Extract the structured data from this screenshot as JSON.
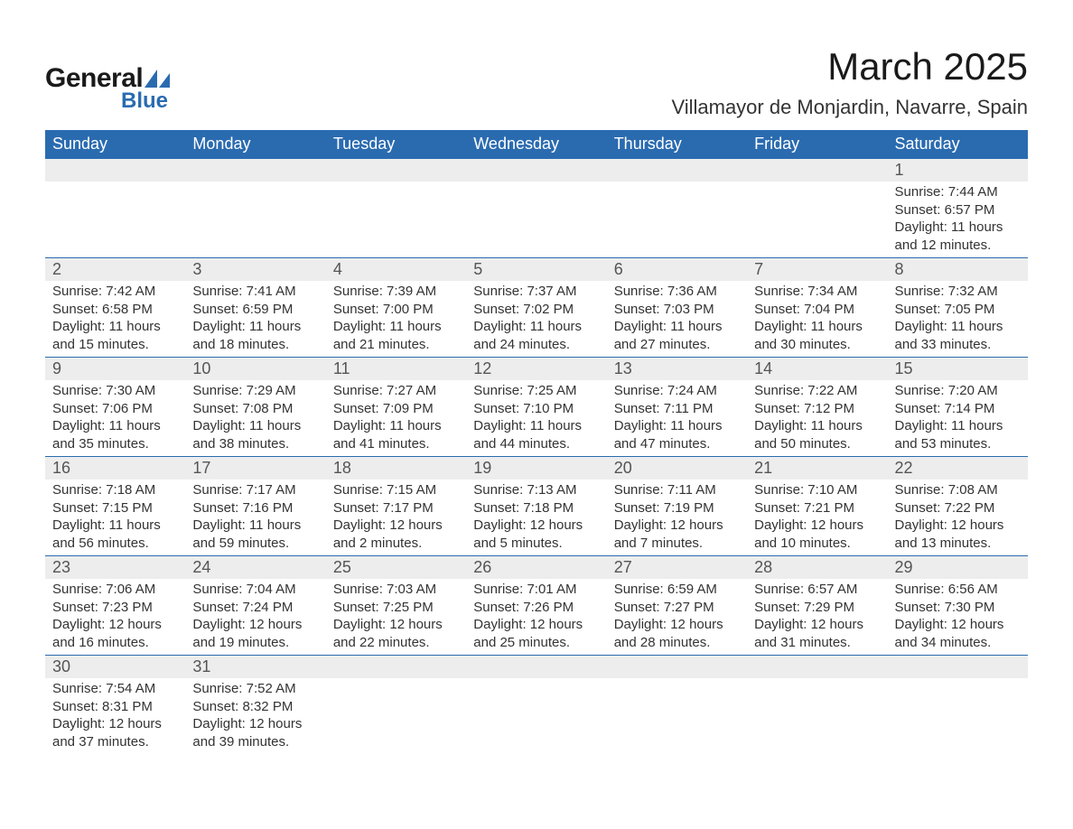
{
  "logo": {
    "text_general": "General",
    "text_blue": "Blue",
    "icon_color": "#2a6bb0"
  },
  "title": "March 2025",
  "location": "Villamayor de Monjardin, Navarre, Spain",
  "colors": {
    "header_bg": "#2a6bb0",
    "header_text": "#ffffff",
    "daynum_bg": "#ededed",
    "border": "#2a6bb0",
    "body_text": "#333333"
  },
  "weekdays": [
    "Sunday",
    "Monday",
    "Tuesday",
    "Wednesday",
    "Thursday",
    "Friday",
    "Saturday"
  ],
  "weeks": [
    [
      null,
      null,
      null,
      null,
      null,
      null,
      {
        "n": "1",
        "sunrise": "Sunrise: 7:44 AM",
        "sunset": "Sunset: 6:57 PM",
        "day1": "Daylight: 11 hours",
        "day2": "and 12 minutes."
      }
    ],
    [
      {
        "n": "2",
        "sunrise": "Sunrise: 7:42 AM",
        "sunset": "Sunset: 6:58 PM",
        "day1": "Daylight: 11 hours",
        "day2": "and 15 minutes."
      },
      {
        "n": "3",
        "sunrise": "Sunrise: 7:41 AM",
        "sunset": "Sunset: 6:59 PM",
        "day1": "Daylight: 11 hours",
        "day2": "and 18 minutes."
      },
      {
        "n": "4",
        "sunrise": "Sunrise: 7:39 AM",
        "sunset": "Sunset: 7:00 PM",
        "day1": "Daylight: 11 hours",
        "day2": "and 21 minutes."
      },
      {
        "n": "5",
        "sunrise": "Sunrise: 7:37 AM",
        "sunset": "Sunset: 7:02 PM",
        "day1": "Daylight: 11 hours",
        "day2": "and 24 minutes."
      },
      {
        "n": "6",
        "sunrise": "Sunrise: 7:36 AM",
        "sunset": "Sunset: 7:03 PM",
        "day1": "Daylight: 11 hours",
        "day2": "and 27 minutes."
      },
      {
        "n": "7",
        "sunrise": "Sunrise: 7:34 AM",
        "sunset": "Sunset: 7:04 PM",
        "day1": "Daylight: 11 hours",
        "day2": "and 30 minutes."
      },
      {
        "n": "8",
        "sunrise": "Sunrise: 7:32 AM",
        "sunset": "Sunset: 7:05 PM",
        "day1": "Daylight: 11 hours",
        "day2": "and 33 minutes."
      }
    ],
    [
      {
        "n": "9",
        "sunrise": "Sunrise: 7:30 AM",
        "sunset": "Sunset: 7:06 PM",
        "day1": "Daylight: 11 hours",
        "day2": "and 35 minutes."
      },
      {
        "n": "10",
        "sunrise": "Sunrise: 7:29 AM",
        "sunset": "Sunset: 7:08 PM",
        "day1": "Daylight: 11 hours",
        "day2": "and 38 minutes."
      },
      {
        "n": "11",
        "sunrise": "Sunrise: 7:27 AM",
        "sunset": "Sunset: 7:09 PM",
        "day1": "Daylight: 11 hours",
        "day2": "and 41 minutes."
      },
      {
        "n": "12",
        "sunrise": "Sunrise: 7:25 AM",
        "sunset": "Sunset: 7:10 PM",
        "day1": "Daylight: 11 hours",
        "day2": "and 44 minutes."
      },
      {
        "n": "13",
        "sunrise": "Sunrise: 7:24 AM",
        "sunset": "Sunset: 7:11 PM",
        "day1": "Daylight: 11 hours",
        "day2": "and 47 minutes."
      },
      {
        "n": "14",
        "sunrise": "Sunrise: 7:22 AM",
        "sunset": "Sunset: 7:12 PM",
        "day1": "Daylight: 11 hours",
        "day2": "and 50 minutes."
      },
      {
        "n": "15",
        "sunrise": "Sunrise: 7:20 AM",
        "sunset": "Sunset: 7:14 PM",
        "day1": "Daylight: 11 hours",
        "day2": "and 53 minutes."
      }
    ],
    [
      {
        "n": "16",
        "sunrise": "Sunrise: 7:18 AM",
        "sunset": "Sunset: 7:15 PM",
        "day1": "Daylight: 11 hours",
        "day2": "and 56 minutes."
      },
      {
        "n": "17",
        "sunrise": "Sunrise: 7:17 AM",
        "sunset": "Sunset: 7:16 PM",
        "day1": "Daylight: 11 hours",
        "day2": "and 59 minutes."
      },
      {
        "n": "18",
        "sunrise": "Sunrise: 7:15 AM",
        "sunset": "Sunset: 7:17 PM",
        "day1": "Daylight: 12 hours",
        "day2": "and 2 minutes."
      },
      {
        "n": "19",
        "sunrise": "Sunrise: 7:13 AM",
        "sunset": "Sunset: 7:18 PM",
        "day1": "Daylight: 12 hours",
        "day2": "and 5 minutes."
      },
      {
        "n": "20",
        "sunrise": "Sunrise: 7:11 AM",
        "sunset": "Sunset: 7:19 PM",
        "day1": "Daylight: 12 hours",
        "day2": "and 7 minutes."
      },
      {
        "n": "21",
        "sunrise": "Sunrise: 7:10 AM",
        "sunset": "Sunset: 7:21 PM",
        "day1": "Daylight: 12 hours",
        "day2": "and 10 minutes."
      },
      {
        "n": "22",
        "sunrise": "Sunrise: 7:08 AM",
        "sunset": "Sunset: 7:22 PM",
        "day1": "Daylight: 12 hours",
        "day2": "and 13 minutes."
      }
    ],
    [
      {
        "n": "23",
        "sunrise": "Sunrise: 7:06 AM",
        "sunset": "Sunset: 7:23 PM",
        "day1": "Daylight: 12 hours",
        "day2": "and 16 minutes."
      },
      {
        "n": "24",
        "sunrise": "Sunrise: 7:04 AM",
        "sunset": "Sunset: 7:24 PM",
        "day1": "Daylight: 12 hours",
        "day2": "and 19 minutes."
      },
      {
        "n": "25",
        "sunrise": "Sunrise: 7:03 AM",
        "sunset": "Sunset: 7:25 PM",
        "day1": "Daylight: 12 hours",
        "day2": "and 22 minutes."
      },
      {
        "n": "26",
        "sunrise": "Sunrise: 7:01 AM",
        "sunset": "Sunset: 7:26 PM",
        "day1": "Daylight: 12 hours",
        "day2": "and 25 minutes."
      },
      {
        "n": "27",
        "sunrise": "Sunrise: 6:59 AM",
        "sunset": "Sunset: 7:27 PM",
        "day1": "Daylight: 12 hours",
        "day2": "and 28 minutes."
      },
      {
        "n": "28",
        "sunrise": "Sunrise: 6:57 AM",
        "sunset": "Sunset: 7:29 PM",
        "day1": "Daylight: 12 hours",
        "day2": "and 31 minutes."
      },
      {
        "n": "29",
        "sunrise": "Sunrise: 6:56 AM",
        "sunset": "Sunset: 7:30 PM",
        "day1": "Daylight: 12 hours",
        "day2": "and 34 minutes."
      }
    ],
    [
      {
        "n": "30",
        "sunrise": "Sunrise: 7:54 AM",
        "sunset": "Sunset: 8:31 PM",
        "day1": "Daylight: 12 hours",
        "day2": "and 37 minutes."
      },
      {
        "n": "31",
        "sunrise": "Sunrise: 7:52 AM",
        "sunset": "Sunset: 8:32 PM",
        "day1": "Daylight: 12 hours",
        "day2": "and 39 minutes."
      },
      null,
      null,
      null,
      null,
      null
    ]
  ]
}
